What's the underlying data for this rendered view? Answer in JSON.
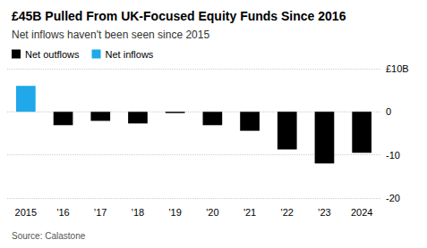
{
  "chart_data": {
    "type": "bar",
    "title": "£45B Pulled From UK-Focused Equity Funds Since 2016",
    "subtitle": "Net inflows haven't been seen since 2015",
    "source": "Source: Calastone",
    "categories": [
      "2015",
      "'16",
      "'17",
      "'18",
      "'19",
      "'20",
      "'21",
      "'22",
      "'23",
      "2024"
    ],
    "series": [
      {
        "name": "Net outflows",
        "color": "#000000",
        "values": [
          null,
          -3.1,
          -2.1,
          -2.7,
          -0.3,
          -3.1,
          -4.4,
          -8.7,
          -12.0,
          -9.5
        ]
      },
      {
        "name": "Net inflows",
        "color": "#1fa8ea",
        "values": [
          6.0,
          null,
          null,
          null,
          null,
          null,
          null,
          null,
          null,
          null
        ]
      }
    ],
    "stacked": true,
    "ylim": [
      -20,
      10
    ],
    "yticks": [
      -20,
      -10,
      0,
      {
        "value": 10,
        "label": "£10B"
      }
    ],
    "grid": true,
    "legend": "top-left"
  }
}
